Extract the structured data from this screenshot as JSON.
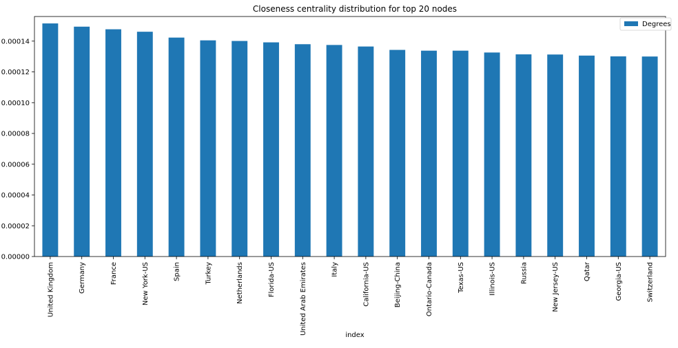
{
  "chart_data": {
    "type": "bar",
    "title": "Closeness centrality distribution for top 20 nodes",
    "xlabel": "index",
    "ylabel": "",
    "ylim": [
      0,
      0.000156
    ],
    "yticks": [
      "0.00000",
      "0.00002",
      "0.00004",
      "0.00006",
      "0.00008",
      "0.00010",
      "0.00012",
      "0.00014"
    ],
    "ytick_values": [
      0,
      2e-05,
      4e-05,
      6e-05,
      8e-05,
      0.0001,
      0.00012,
      0.00014
    ],
    "categories": [
      "United Kingdom",
      "Germany",
      "France",
      "New York-US",
      "Spain",
      "Turkey",
      "Netherlands",
      "Florida-US",
      "United Arab Emirates",
      "Italy",
      "California-US",
      "Beijing-China",
      "Ontario-Canada",
      "Texas-US",
      "Illinois-US",
      "Russia",
      "New Jersey-US",
      "Qatar",
      "Georgia-US",
      "Switzerland"
    ],
    "series": [
      {
        "name": "Degrees",
        "color": "#1f77b4",
        "values": [
          0.0001515,
          0.0001494,
          0.0001477,
          0.0001461,
          0.0001423,
          0.0001405,
          0.0001401,
          0.0001392,
          0.000138,
          0.0001375,
          0.0001365,
          0.0001343,
          0.0001338,
          0.0001338,
          0.0001326,
          0.0001314,
          0.0001313,
          0.0001306,
          0.0001301,
          0.00013
        ]
      }
    ],
    "legend_position": "top-right",
    "grid": false
  }
}
